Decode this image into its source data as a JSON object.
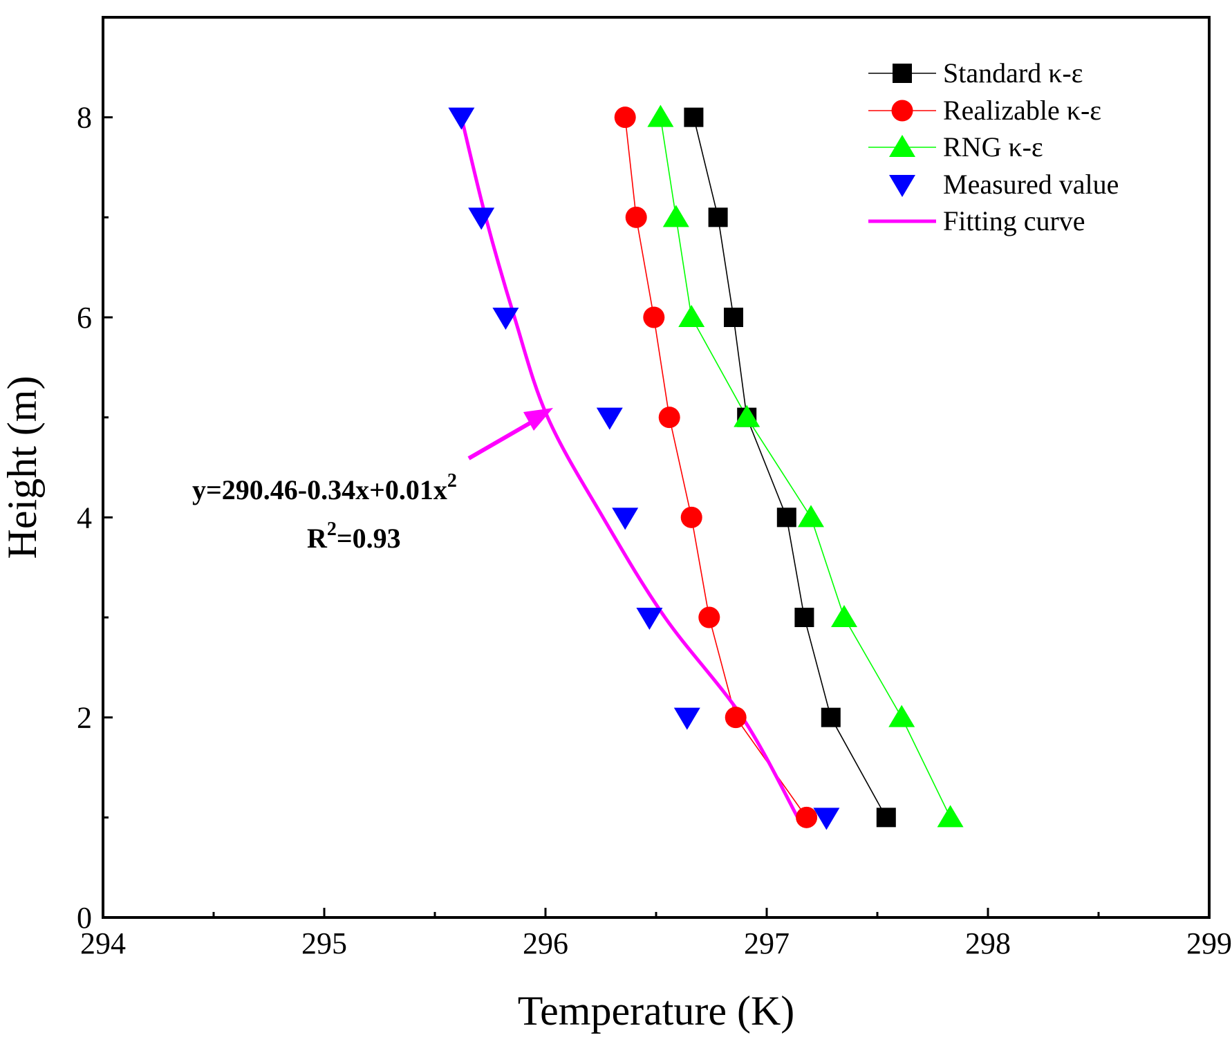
{
  "chart_data": {
    "type": "line",
    "title": "",
    "xlabel": "Temperature (K)",
    "ylabel": "Height (m)",
    "xlim": [
      294,
      299
    ],
    "ylim": [
      0,
      9
    ],
    "x_ticks": [
      294,
      295,
      296,
      297,
      298,
      299
    ],
    "y_ticks": [
      0,
      2,
      4,
      6,
      8
    ],
    "x_tick_labels": [
      "294",
      "295",
      "296",
      "297",
      "298",
      "299"
    ],
    "y_tick_labels": [
      "0",
      "2",
      "4",
      "6",
      "8"
    ],
    "grid": false,
    "legend_position": "top-right",
    "series": [
      {
        "name": "Standard κ-ε",
        "marker": "square",
        "color": "#000000",
        "line": true,
        "points": [
          {
            "x": 297.54,
            "y": 1
          },
          {
            "x": 297.29,
            "y": 2
          },
          {
            "x": 297.17,
            "y": 3
          },
          {
            "x": 297.09,
            "y": 4
          },
          {
            "x": 296.91,
            "y": 5
          },
          {
            "x": 296.85,
            "y": 6
          },
          {
            "x": 296.78,
            "y": 7
          },
          {
            "x": 296.67,
            "y": 8
          }
        ]
      },
      {
        "name": "Realizable κ-ε",
        "marker": "circle",
        "color": "#ff0000",
        "line": true,
        "points": [
          {
            "x": 297.18,
            "y": 1
          },
          {
            "x": 296.86,
            "y": 2
          },
          {
            "x": 296.74,
            "y": 3
          },
          {
            "x": 296.66,
            "y": 4
          },
          {
            "x": 296.56,
            "y": 5
          },
          {
            "x": 296.49,
            "y": 6
          },
          {
            "x": 296.41,
            "y": 7
          },
          {
            "x": 296.36,
            "y": 8
          }
        ]
      },
      {
        "name": "RNG κ-ε",
        "marker": "triangle-up",
        "color": "#00ff00",
        "line": true,
        "points": [
          {
            "x": 297.83,
            "y": 1
          },
          {
            "x": 297.61,
            "y": 2
          },
          {
            "x": 297.35,
            "y": 3
          },
          {
            "x": 297.2,
            "y": 4
          },
          {
            "x": 296.91,
            "y": 5
          },
          {
            "x": 296.66,
            "y": 6
          },
          {
            "x": 296.59,
            "y": 7
          },
          {
            "x": 296.52,
            "y": 8
          }
        ]
      },
      {
        "name": "Measured value",
        "marker": "triangle-down",
        "color": "#0000ff",
        "line": false,
        "points": [
          {
            "x": 297.27,
            "y": 1
          },
          {
            "x": 296.64,
            "y": 2
          },
          {
            "x": 296.47,
            "y": 3
          },
          {
            "x": 296.36,
            "y": 4
          },
          {
            "x": 296.29,
            "y": 5
          },
          {
            "x": 295.82,
            "y": 6
          },
          {
            "x": 295.71,
            "y": 7
          },
          {
            "x": 295.62,
            "y": 8
          }
        ]
      },
      {
        "name": "Fitting curve",
        "marker": "none",
        "color": "#ff00ff",
        "line": true,
        "points": [
          {
            "x": 297.14,
            "y": 1
          },
          {
            "x": 296.89,
            "y": 2
          },
          {
            "x": 296.54,
            "y": 3
          },
          {
            "x": 296.26,
            "y": 4
          },
          {
            "x": 296.01,
            "y": 5
          },
          {
            "x": 295.86,
            "y": 6
          },
          {
            "x": 295.73,
            "y": 7
          },
          {
            "x": 295.62,
            "y": 8
          }
        ]
      }
    ],
    "annotations": [
      {
        "id": "equation",
        "text": "y=290.46-0.34x+0.01x",
        "superscript": "2"
      },
      {
        "id": "r-squared",
        "text_before": "R",
        "superscript": "2",
        "text_after": "=0.93"
      }
    ],
    "arrow_color": "#ff00ff"
  }
}
